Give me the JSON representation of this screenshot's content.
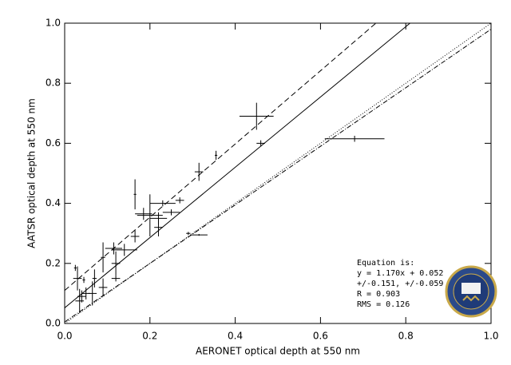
{
  "chart_data": {
    "type": "scatter",
    "x_label": "AERONET optical depth at 550 nm",
    "y_label": "AATSR optical depth at 550 nm",
    "xlim": [
      0,
      1
    ],
    "ylim": [
      0,
      1
    ],
    "xticks": [
      {
        "value": 0,
        "label": "0.0"
      },
      0.2,
      0.4,
      0.6,
      0.8,
      {
        "value": 1,
        "label": "1.0"
      }
    ],
    "yticks": [
      {
        "value": 0,
        "label": "0.0"
      },
      0.2,
      0.4,
      0.6,
      0.8,
      {
        "value": 1,
        "label": "1.0"
      }
    ],
    "series": [
      {
        "color": "#000000",
        "x": [
          0.45,
          0.46,
          0.68,
          0.355,
          0.315,
          0.315,
          0.29,
          0.27,
          0.25,
          0.23,
          0.22,
          0.22,
          0.2,
          0.185,
          0.165,
          0.165,
          0.14,
          0.115,
          0.12,
          0.12,
          0.09,
          0.09,
          0.07,
          0.065,
          0.05,
          0.045,
          0.035,
          0.03,
          0.025,
          0.04
        ],
        "values": [
          0.69,
          0.6,
          0.615,
          0.56,
          0.505,
          0.295,
          0.3,
          0.41,
          0.37,
          0.4,
          0.35,
          0.32,
          0.36,
          0.365,
          0.43,
          0.29,
          0.245,
          0.25,
          0.2,
          0.15,
          0.22,
          0.12,
          0.15,
          0.1,
          0.1,
          0.145,
          0.075,
          0.15,
          0.185,
          0.09
        ],
        "xerr": [
          0.04,
          0.01,
          0.07,
          0.003,
          0.01,
          0.02,
          0.005,
          0.01,
          0.02,
          0.03,
          0.02,
          0.01,
          0.03,
          0.02,
          0.003,
          0.01,
          0.03,
          0.02,
          0.01,
          0.01,
          0.005,
          0.01,
          0.005,
          0.01,
          0.01,
          0.003,
          0.01,
          0.01,
          0.003,
          0.01
        ],
        "yerr": [
          0.045,
          0.01,
          0.01,
          0.015,
          0.03,
          0.003,
          0.005,
          0.01,
          0.01,
          0.01,
          0.02,
          0.03,
          0.07,
          0.02,
          0.05,
          0.02,
          0.02,
          0.02,
          0.04,
          0.01,
          0.05,
          0.03,
          0.03,
          0.04,
          0.02,
          0.01,
          0.04,
          0.04,
          0.01,
          0.02
        ]
      }
    ],
    "lines": [
      {
        "x": [
          0,
          0.81
        ],
        "values": [
          0.052,
          1
        ],
        "dash": "none"
      },
      {
        "x": [
          0,
          0.73
        ],
        "values": [
          0.11,
          1
        ],
        "dash": "7,4"
      },
      {
        "x": [
          0,
          1
        ],
        "values": [
          0,
          1
        ],
        "dash": "1,2"
      },
      {
        "x": [
          0,
          1
        ],
        "values": [
          0.005,
          0.98
        ],
        "dash": "6,2,1,2"
      }
    ],
    "annotations": [
      "Equation is:",
      "y = 1.170x + 0.052",
      "+/-0.151, +/-0.059",
      "R = 0.903",
      "RMS = 0.126"
    ]
  }
}
